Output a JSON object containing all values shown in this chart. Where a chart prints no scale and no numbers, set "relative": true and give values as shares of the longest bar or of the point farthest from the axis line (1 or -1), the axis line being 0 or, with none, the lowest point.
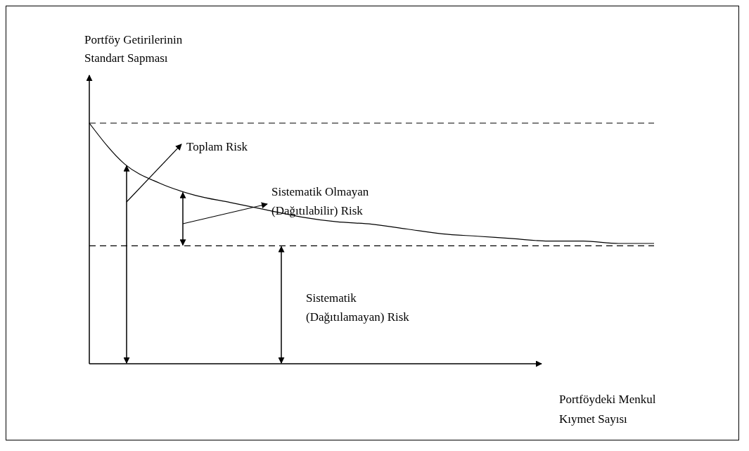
{
  "chart_data": {
    "type": "line",
    "relative": true,
    "xlabel": "Portföydeki Menkul Kıymet Sayısı",
    "ylabel": "Portföy Getirilerinin Standart Sapması",
    "categories": [
      null,
      null,
      null,
      null,
      null,
      null,
      null,
      null,
      null,
      null,
      null,
      null,
      null,
      null,
      null,
      null,
      null
    ],
    "series": [
      {
        "color": "#000000",
        "values": [
          1,
          0.83,
          0.75,
          0.7,
          0.67,
          0.64,
          0.61,
          0.59,
          0.58,
          0.56,
          0.54,
          0.53,
          0.52,
          0.51,
          0.51,
          0.5,
          0.5
        ]
      }
    ],
    "ref_lines": [
      {
        "axis": "y",
        "value": 1,
        "color": "#000000",
        "line_style": "dashed"
      },
      {
        "axis": "y",
        "value": 0.49,
        "color": "#000000",
        "line_style": "dashed"
      }
    ],
    "annotations": [
      "Toplam Risk",
      "Sistematik Olmayan (Dağıtılabilir) Risk",
      "Sistematik (Dağıtılamayan) Risk"
    ],
    "grid": false,
    "marker": "none",
    "line_style": "solid"
  }
}
